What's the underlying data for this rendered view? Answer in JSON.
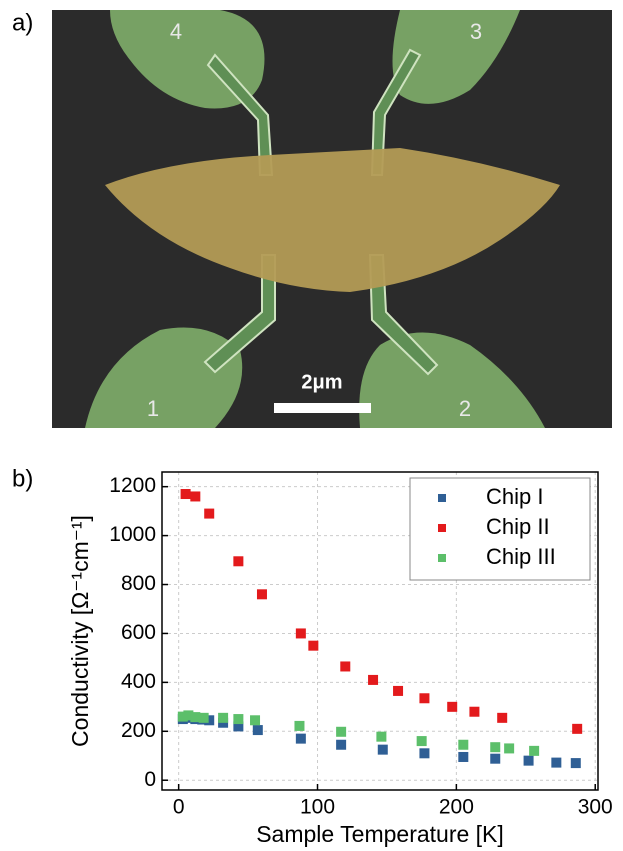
{
  "panel_labels": [
    "a)",
    "b)"
  ],
  "image": {
    "electrode_labels": [
      "4",
      "3",
      "1",
      "2"
    ],
    "scale_bar": "2μm"
  },
  "chart_data": {
    "type": "scatter",
    "x_label": "Sample Temperature [K]",
    "y_label": "Conductivity [Ω⁻¹cm⁻¹]",
    "xlim": [
      -12,
      302
    ],
    "ylim": [
      -40,
      1260
    ],
    "xticks": [
      0,
      100,
      200,
      300
    ],
    "yticks": [
      0,
      200,
      400,
      600,
      800,
      1000,
      1200
    ],
    "grid": true,
    "legend": "upper right",
    "series": [
      {
        "name": "Chip I",
        "color": "#2f5f95",
        "x": [
          3,
          7,
          12,
          17,
          22,
          32,
          43,
          57,
          88,
          117,
          147,
          177,
          205,
          228,
          252,
          272,
          286
        ],
        "values": [
          250,
          255,
          250,
          248,
          245,
          235,
          220,
          205,
          170,
          145,
          125,
          110,
          95,
          88,
          80,
          72,
          70
        ]
      },
      {
        "name": "Chip II",
        "color": "#e31a1c",
        "x": [
          5,
          12,
          22,
          43,
          60,
          88,
          97,
          120,
          140,
          158,
          177,
          197,
          213,
          233,
          287
        ],
        "values": [
          1170,
          1160,
          1090,
          895,
          760,
          600,
          550,
          465,
          410,
          365,
          335,
          300,
          280,
          255,
          210
        ]
      },
      {
        "name": "Chip III",
        "color": "#5cbf6a",
        "x": [
          3,
          7,
          12,
          18,
          32,
          43,
          55,
          87,
          117,
          146,
          175,
          205,
          228,
          238,
          256
        ],
        "values": [
          260,
          265,
          258,
          255,
          255,
          250,
          245,
          222,
          198,
          178,
          160,
          145,
          135,
          130,
          120
        ]
      }
    ]
  }
}
